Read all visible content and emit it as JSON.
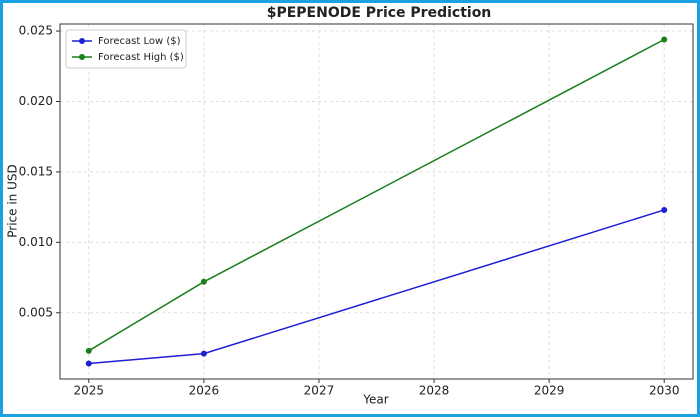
{
  "chart_data": {
    "type": "line",
    "title": "$PEPENODE Price Prediction",
    "x_label": "Year",
    "y_label": "Price in USD",
    "x": [
      2025,
      2026,
      2030
    ],
    "series": [
      {
        "name": "Forecast Low ($)",
        "color": "#1f1fd6",
        "values": [
          0.0014,
          0.0021,
          0.0123
        ]
      },
      {
        "name": "Forecast High ($)",
        "color": "#1a7f1a",
        "values": [
          0.0023,
          0.0072,
          0.0244
        ]
      }
    ],
    "xlim": [
      2024.75,
      2030.25
    ],
    "xticks": [
      2025,
      2026,
      2027,
      2028,
      2029,
      2030
    ],
    "ylim": [
      0.0003,
      0.0255
    ],
    "yticks": [
      0.005,
      {
        "value": 0.01,
        "label": "0.010"
      },
      0.015,
      {
        "value": 0.02,
        "label": "0.020"
      },
      0.025
    ],
    "grid": true,
    "legend": "upper-left"
  }
}
